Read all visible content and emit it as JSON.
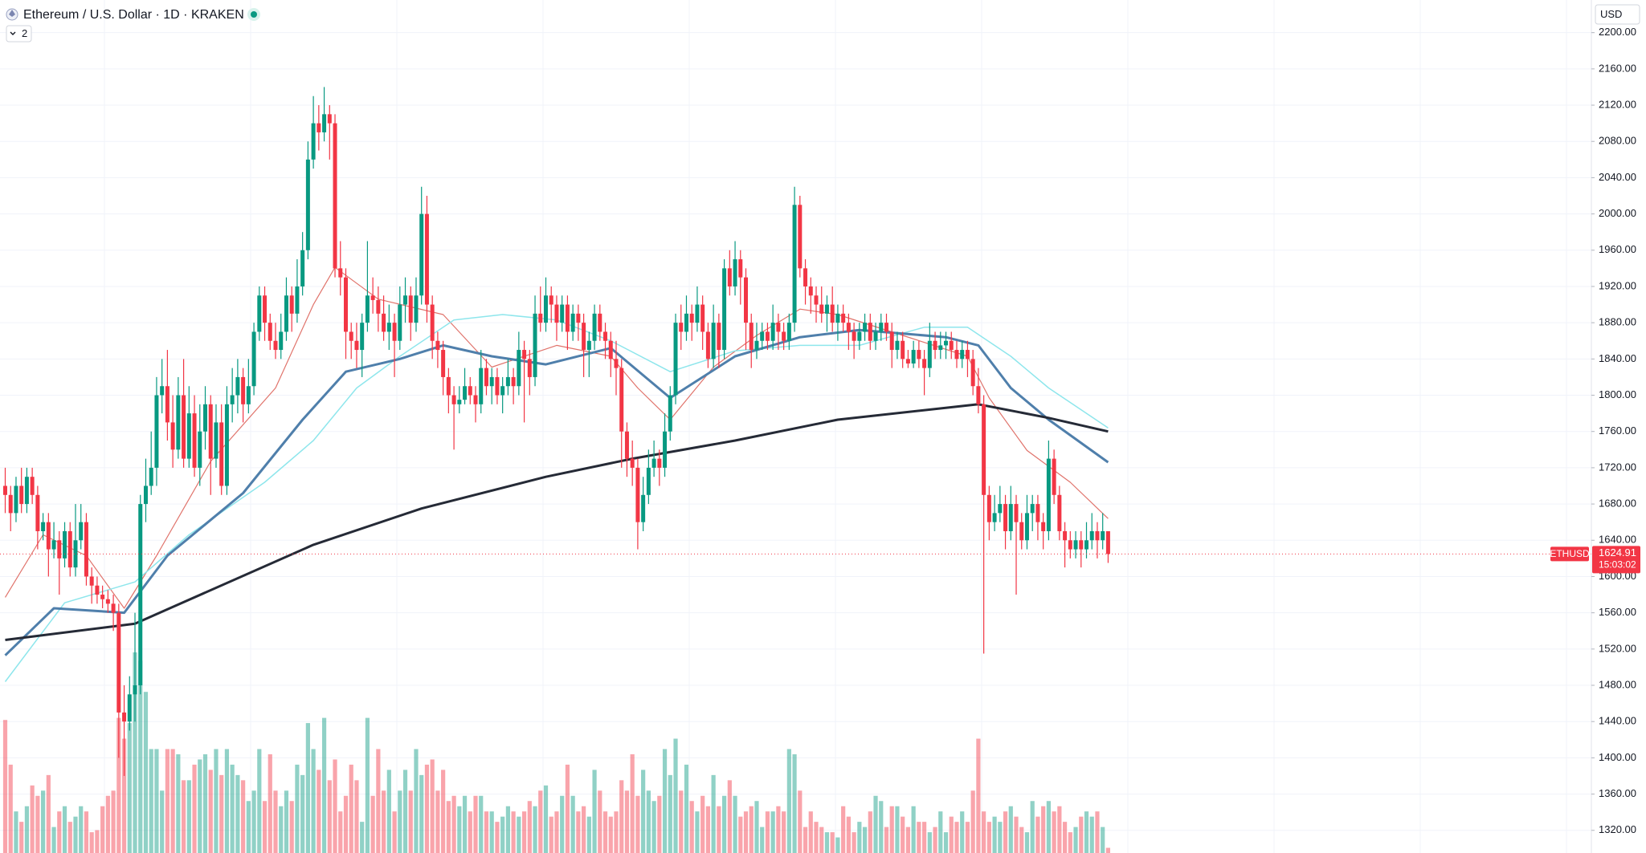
{
  "chart_data": {
    "type": "candlestick",
    "title": "Ethereum / U.S. Dollar · 1D · KRAKEN",
    "indicator_count": "2",
    "currency": "USD",
    "symbol": "ETHUSD",
    "countdown": "15:03:02",
    "up_color": "#089981",
    "down_color": "#f23645",
    "grid": true,
    "ylim": [
      1295,
      2236
    ],
    "yticks": [
      {
        "value": 1320,
        "label": "1320.00"
      },
      {
        "value": 1360,
        "label": "1360.00"
      },
      {
        "value": 1400,
        "label": "1400.00"
      },
      {
        "value": 1440,
        "label": "1440.00"
      },
      {
        "value": 1480,
        "label": "1480.00"
      },
      {
        "value": 1520,
        "label": "1520.00"
      },
      {
        "value": 1560,
        "label": "1560.00"
      },
      {
        "value": 1600,
        "label": "1600.00"
      },
      {
        "value": 1640,
        "label": "1640.00"
      },
      {
        "value": 1680,
        "label": "1680.00"
      },
      {
        "value": 1720,
        "label": "1720.00"
      },
      {
        "value": 1760,
        "label": "1760.00"
      },
      {
        "value": 1800,
        "label": "1800.00"
      },
      {
        "value": 1840,
        "label": "1840.00"
      },
      {
        "value": 1880,
        "label": "1880.00"
      },
      {
        "value": 1920,
        "label": "1920.00"
      },
      {
        "value": 1960,
        "label": "1960.00"
      },
      {
        "value": 2000,
        "label": "2000.00"
      },
      {
        "value": 2040,
        "label": "2040.00"
      },
      {
        "value": 2080,
        "label": "2080.00"
      },
      {
        "value": 2120,
        "label": "2120.00"
      },
      {
        "value": 2160,
        "label": "2160.00"
      },
      {
        "value": 2200,
        "label": "2200.00"
      }
    ],
    "open": [
      1700,
      1690,
      1670,
      1700,
      1680,
      1710,
      1690,
      1650,
      1660,
      1630,
      1640,
      1620,
      1650,
      1610,
      1640,
      1660,
      1600,
      1590,
      1580,
      1575,
      1570,
      1560,
      1450,
      1440,
      1470,
      1480,
      1680,
      1700,
      1720,
      1800,
      1810,
      1770,
      1740,
      1800,
      1730,
      1780,
      1720,
      1760,
      1790,
      1730,
      1770,
      1700,
      1790,
      1800,
      1820,
      1790,
      1810,
      1870,
      1910,
      1880,
      1860,
      1850,
      1870,
      1910,
      1890,
      1920,
      1960,
      2060,
      2100,
      2090,
      2110,
      2100,
      1940,
      1930,
      1870,
      1860,
      1850,
      1880,
      1910,
      1905,
      1890,
      1870,
      1880,
      1860,
      1900,
      1910,
      1880,
      1910,
      2000,
      1900,
      1860,
      1850,
      1820,
      1800,
      1790,
      1795,
      1810,
      1800,
      1790,
      1830,
      1810,
      1820,
      1800,
      1810,
      1820,
      1810,
      1850,
      1840,
      1820,
      1890,
      1880,
      1910,
      1900,
      1880,
      1900,
      1870,
      1890,
      1880,
      1850,
      1860,
      1890,
      1870,
      1860,
      1840,
      1830,
      1760,
      1730,
      1720,
      1660,
      1690,
      1720,
      1730,
      1720,
      1760,
      1800,
      1880,
      1870,
      1890,
      1880,
      1900,
      1870,
      1840,
      1880,
      1850,
      1940,
      1920,
      1950,
      1930,
      1880,
      1850,
      1860,
      1870,
      1860,
      1880,
      1870,
      1860,
      1880,
      2010,
      1940,
      1920,
      1910,
      1900,
      1890,
      1900,
      1880,
      1890,
      1880,
      1870,
      1860,
      1870,
      1880,
      1860,
      1870,
      1880,
      1870,
      1850,
      1860,
      1840,
      1835,
      1850,
      1840,
      1830,
      1860,
      1850,
      1855,
      1860,
      1850,
      1840,
      1850,
      1840,
      1810,
      1790,
      1690,
      1660,
      1670,
      1680,
      1650,
      1680,
      1660,
      1640,
      1670,
      1680,
      1660,
      1650,
      1730,
      1690,
      1650,
      1640,
      1630,
      1640,
      1630,
      1640,
      1650,
      1640,
      1650
    ],
    "high": [
      1720,
      1700,
      1710,
      1720,
      1720,
      1720,
      1700,
      1670,
      1670,
      1660,
      1650,
      1660,
      1660,
      1680,
      1680,
      1670,
      1610,
      1600,
      1590,
      1585,
      1580,
      1570,
      1480,
      1490,
      1560,
      1690,
      1730,
      1760,
      1820,
      1840,
      1850,
      1800,
      1820,
      1840,
      1810,
      1800,
      1790,
      1810,
      1800,
      1790,
      1790,
      1810,
      1830,
      1840,
      1830,
      1840,
      1880,
      1920,
      1920,
      1890,
      1880,
      1890,
      1930,
      1920,
      1950,
      1980,
      2080,
      2130,
      2120,
      2140,
      2120,
      2110,
      1970,
      1940,
      1880,
      1880,
      1890,
      1970,
      1930,
      1920,
      1910,
      1900,
      1890,
      1920,
      1930,
      1920,
      1930,
      2030,
      2020,
      1910,
      1870,
      1860,
      1830,
      1810,
      1810,
      1830,
      1820,
      1810,
      1850,
      1840,
      1830,
      1830,
      1820,
      1840,
      1830,
      1870,
      1860,
      1850,
      1910,
      1920,
      1930,
      1920,
      1910,
      1910,
      1910,
      1900,
      1900,
      1890,
      1870,
      1900,
      1900,
      1880,
      1870,
      1860,
      1840,
      1770,
      1750,
      1730,
      1710,
      1740,
      1750,
      1740,
      1780,
      1810,
      1890,
      1900,
      1910,
      1900,
      1920,
      1910,
      1880,
      1900,
      1890,
      1950,
      1960,
      1970,
      1960,
      1940,
      1890,
      1880,
      1880,
      1880,
      1900,
      1890,
      1880,
      1890,
      2030,
      2020,
      1950,
      1930,
      1920,
      1920,
      1910,
      1920,
      1900,
      1900,
      1890,
      1880,
      1880,
      1890,
      1890,
      1880,
      1890,
      1890,
      1880,
      1870,
      1870,
      1850,
      1860,
      1860,
      1850,
      1880,
      1870,
      1870,
      1870,
      1870,
      1860,
      1860,
      1860,
      1850,
      1830,
      1800,
      1700,
      1690,
      1700,
      1690,
      1700,
      1690,
      1670,
      1690,
      1690,
      1690,
      1670,
      1750,
      1740,
      1700,
      1660,
      1650,
      1650,
      1650,
      1660,
      1670,
      1660,
      1670,
      1650
    ],
    "low": [
      1670,
      1650,
      1660,
      1670,
      1670,
      1680,
      1630,
      1640,
      1600,
      1620,
      1580,
      1610,
      1600,
      1600,
      1630,
      1590,
      1570,
      1570,
      1565,
      1560,
      1540,
      1400,
      1380,
      1430,
      1440,
      1470,
      1660,
      1690,
      1700,
      1780,
      1750,
      1720,
      1730,
      1720,
      1720,
      1710,
      1700,
      1740,
      1690,
      1720,
      1690,
      1690,
      1770,
      1780,
      1770,
      1780,
      1800,
      1860,
      1860,
      1850,
      1840,
      1840,
      1860,
      1870,
      1880,
      1910,
      1950,
      2050,
      2070,
      2080,
      2060,
      1930,
      1910,
      1840,
      1840,
      1830,
      1820,
      1870,
      1890,
      1870,
      1860,
      1850,
      1820,
      1850,
      1880,
      1860,
      1870,
      1900,
      1880,
      1840,
      1830,
      1800,
      1780,
      1740,
      1780,
      1790,
      1790,
      1770,
      1780,
      1800,
      1790,
      1790,
      1780,
      1800,
      1790,
      1800,
      1770,
      1800,
      1810,
      1870,
      1870,
      1880,
      1860,
      1870,
      1850,
      1860,
      1860,
      1820,
      1820,
      1850,
      1860,
      1840,
      1820,
      1800,
      1720,
      1710,
      1700,
      1630,
      1650,
      1680,
      1710,
      1700,
      1710,
      1750,
      1790,
      1850,
      1860,
      1860,
      1870,
      1850,
      1830,
      1830,
      1830,
      1840,
      1910,
      1910,
      1900,
      1850,
      1830,
      1840,
      1850,
      1850,
      1850,
      1850,
      1850,
      1850,
      1870,
      1930,
      1900,
      1890,
      1880,
      1880,
      1870,
      1870,
      1860,
      1870,
      1850,
      1840,
      1850,
      1860,
      1850,
      1850,
      1860,
      1860,
      1830,
      1840,
      1830,
      1830,
      1830,
      1830,
      1800,
      1820,
      1840,
      1840,
      1840,
      1840,
      1830,
      1830,
      1820,
      1800,
      1780,
      1515,
      1640,
      1650,
      1660,
      1630,
      1640,
      1580,
      1630,
      1630,
      1650,
      1640,
      1630,
      1640,
      1680,
      1640,
      1610,
      1620,
      1620,
      1610,
      1620,
      1630,
      1620,
      1630,
      1615
    ],
    "close": [
      1690,
      1670,
      1700,
      1680,
      1710,
      1690,
      1650,
      1660,
      1630,
      1640,
      1620,
      1650,
      1610,
      1640,
      1660,
      1600,
      1590,
      1580,
      1575,
      1570,
      1560,
      1450,
      1440,
      1470,
      1480,
      1680,
      1700,
      1720,
      1800,
      1810,
      1770,
      1740,
      1800,
      1730,
      1780,
      1720,
      1760,
      1790,
      1730,
      1770,
      1700,
      1790,
      1800,
      1820,
      1790,
      1810,
      1870,
      1910,
      1880,
      1860,
      1850,
      1870,
      1910,
      1890,
      1920,
      1960,
      2060,
      2100,
      2090,
      2110,
      2100,
      1940,
      1930,
      1870,
      1860,
      1850,
      1880,
      1910,
      1905,
      1890,
      1870,
      1880,
      1860,
      1900,
      1910,
      1880,
      1910,
      2000,
      1900,
      1860,
      1850,
      1820,
      1800,
      1790,
      1795,
      1810,
      1800,
      1790,
      1830,
      1810,
      1820,
      1800,
      1810,
      1820,
      1810,
      1850,
      1840,
      1820,
      1890,
      1880,
      1910,
      1900,
      1880,
      1900,
      1870,
      1890,
      1880,
      1850,
      1860,
      1890,
      1870,
      1860,
      1840,
      1830,
      1760,
      1730,
      1720,
      1660,
      1690,
      1720,
      1730,
      1720,
      1760,
      1800,
      1880,
      1870,
      1890,
      1880,
      1900,
      1870,
      1840,
      1880,
      1850,
      1940,
      1920,
      1950,
      1930,
      1880,
      1850,
      1860,
      1870,
      1860,
      1880,
      1870,
      1860,
      1880,
      2010,
      1940,
      1920,
      1910,
      1900,
      1890,
      1900,
      1880,
      1890,
      1880,
      1870,
      1860,
      1870,
      1880,
      1860,
      1870,
      1880,
      1870,
      1850,
      1860,
      1840,
      1835,
      1850,
      1840,
      1830,
      1860,
      1850,
      1855,
      1860,
      1850,
      1840,
      1850,
      1840,
      1810,
      1790,
      1690,
      1660,
      1670,
      1680,
      1650,
      1680,
      1660,
      1640,
      1670,
      1680,
      1660,
      1650,
      1730,
      1690,
      1650,
      1640,
      1630,
      1640,
      1630,
      1640,
      1650,
      1640,
      1650,
      1624.91
    ],
    "volume": [
      128,
      85,
      40,
      30,
      45,
      65,
      55,
      60,
      75,
      25,
      40,
      45,
      30,
      35,
      45,
      40,
      20,
      22,
      45,
      55,
      60,
      130,
      110,
      125,
      193,
      185,
      155,
      100,
      100,
      60,
      100,
      100,
      95,
      70,
      70,
      85,
      90,
      95,
      80,
      100,
      75,
      100,
      85,
      75,
      70,
      50,
      60,
      100,
      50,
      95,
      60,
      45,
      60,
      50,
      85,
      75,
      125,
      100,
      80,
      130,
      70,
      90,
      40,
      55,
      85,
      70,
      30,
      130,
      55,
      100,
      60,
      80,
      40,
      60,
      80,
      60,
      100,
      75,
      85,
      90,
      60,
      80,
      50,
      55,
      45,
      55,
      40,
      55,
      55,
      40,
      40,
      30,
      35,
      45,
      40,
      35,
      40,
      50,
      45,
      60,
      65,
      35,
      40,
      55,
      85,
      55,
      40,
      45,
      35,
      80,
      60,
      40,
      35,
      40,
      70,
      60,
      95,
      55,
      80,
      60,
      50,
      55,
      100,
      75,
      110,
      60,
      85,
      50,
      40,
      55,
      45,
      75,
      45,
      55,
      70,
      55,
      35,
      40,
      45,
      50,
      25,
      40,
      40,
      45,
      40,
      100,
      95,
      60,
      25,
      40,
      30,
      25,
      20,
      20,
      15,
      45,
      35,
      20,
      30,
      25,
      40,
      55,
      50,
      25,
      45,
      45,
      35,
      25,
      45,
      30,
      30,
      20,
      25,
      40,
      20,
      35,
      30,
      40,
      30,
      60,
      110,
      40,
      30,
      35,
      30,
      40,
      45,
      35,
      25,
      20,
      50,
      35,
      45,
      50,
      40,
      45,
      30,
      20,
      25,
      35,
      40,
      35,
      40,
      25,
      5
    ],
    "ma_lines": [
      {
        "color": "#e0736b",
        "width": 1.2,
        "x": [
          0,
          7,
          15,
          22,
          28,
          38,
          50,
          57,
          61,
          69,
          81,
          90,
          102,
          112,
          117,
          123,
          131,
          139,
          147,
          154,
          166,
          178,
          182,
          189,
          197,
          204
        ],
        "values": [
          1577,
          1646,
          1623,
          1565,
          1623,
          1727,
          1808,
          1900,
          1941,
          1906,
          1889,
          1831,
          1855,
          1843,
          1808,
          1773,
          1831,
          1866,
          1895,
          1889,
          1866,
          1843,
          1797,
          1739,
          1704,
          1664
        ]
      },
      {
        "color": "#8ee6ec",
        "width": 1.5,
        "x": [
          0,
          11,
          24,
          34,
          48,
          57,
          65,
          73,
          83,
          92,
          102,
          112,
          123,
          135,
          147,
          158,
          170,
          178,
          186,
          193,
          204
        ],
        "values": [
          1484,
          1571,
          1594,
          1646,
          1704,
          1750,
          1808,
          1843,
          1883,
          1889,
          1883,
          1860,
          1826,
          1849,
          1855,
          1855,
          1875,
          1875,
          1843,
          1808,
          1764
        ]
      },
      {
        "color": "#4f7fab",
        "width": 3,
        "x": [
          0,
          9,
          22,
          30,
          44,
          55,
          63,
          73,
          81,
          90,
          100,
          112,
          123,
          135,
          147,
          158,
          174,
          180,
          186,
          193,
          204
        ],
        "values": [
          1513,
          1565,
          1560,
          1623,
          1692,
          1773,
          1826,
          1840,
          1855,
          1843,
          1834,
          1852,
          1797,
          1843,
          1864,
          1872,
          1864,
          1855,
          1808,
          1773,
          1726
        ]
      },
      {
        "color": "#252a36",
        "width": 3,
        "x": [
          0,
          24,
          57,
          77,
          100,
          116,
          135,
          154,
          180,
          193,
          204
        ],
        "values": [
          1530,
          1548,
          1635,
          1675,
          1710,
          1730,
          1750,
          1773,
          1790,
          1775,
          1760
        ]
      }
    ]
  }
}
